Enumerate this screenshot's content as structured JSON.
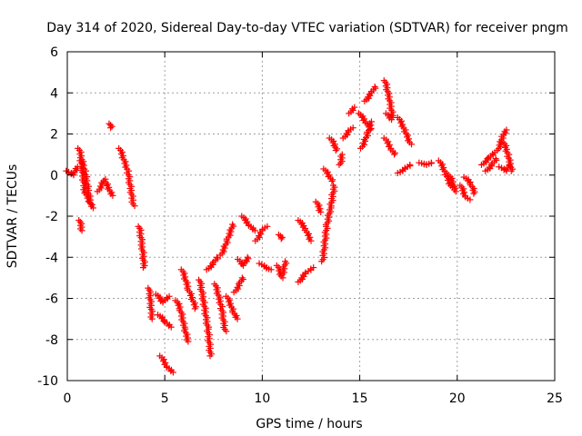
{
  "chart_data": {
    "type": "scatter",
    "title": "Day 314 of 2020, Sidereal Day-to-day VTEC variation (SDTVAR) for receiver pngm",
    "xlabel": "GPS time / hours",
    "ylabel": "SDTVAR / TECUs",
    "xlim": [
      0,
      25
    ],
    "ylim": [
      -10,
      6
    ],
    "xticks": [
      "0",
      "5",
      "10",
      "15",
      "20",
      "25"
    ],
    "yticks": [
      "-10",
      "-8",
      "-6",
      "-4",
      "-2",
      "0",
      "2",
      "4",
      "6"
    ],
    "grid": true,
    "marker": "plus",
    "color": "#ff0000",
    "series": [
      {
        "name": "SDTVAR",
        "segments": [
          [
            [
              0.0,
              0.2
            ],
            [
              0.3,
              0.0
            ],
            [
              0.5,
              0.4
            ]
          ],
          [
            [
              0.6,
              1.3
            ],
            [
              0.9,
              0.2
            ],
            [
              1.2,
              -1.4
            ]
          ],
          [
            [
              0.65,
              -2.2
            ],
            [
              0.75,
              -2.7
            ]
          ],
          [
            [
              0.7,
              0.7
            ],
            [
              0.9,
              -0.8
            ],
            [
              1.3,
              -1.6
            ]
          ],
          [
            [
              1.6,
              -0.8
            ],
            [
              1.9,
              -0.2
            ],
            [
              2.3,
              -1.0
            ]
          ],
          [
            [
              2.2,
              2.5
            ],
            [
              2.25,
              2.3
            ]
          ],
          [
            [
              2.7,
              1.3
            ],
            [
              3.1,
              0.2
            ],
            [
              3.4,
              -1.5
            ]
          ],
          [
            [
              3.7,
              -2.5
            ],
            [
              3.85,
              -3.5
            ],
            [
              3.95,
              -4.5
            ]
          ],
          [
            [
              4.2,
              -5.5
            ],
            [
              4.35,
              -7.0
            ]
          ],
          [
            [
              4.6,
              -5.8
            ],
            [
              4.9,
              -6.2
            ],
            [
              5.2,
              -5.9
            ]
          ],
          [
            [
              4.7,
              -6.8
            ],
            [
              5.0,
              -7.1
            ],
            [
              5.3,
              -7.4
            ]
          ],
          [
            [
              4.8,
              -8.8
            ],
            [
              5.1,
              -9.3
            ],
            [
              5.4,
              -9.6
            ]
          ],
          [
            [
              5.6,
              -6.1
            ],
            [
              5.8,
              -6.5
            ],
            [
              6.0,
              -7.4
            ],
            [
              6.2,
              -8.1
            ]
          ],
          [
            [
              5.9,
              -4.6
            ],
            [
              6.2,
              -5.5
            ],
            [
              6.6,
              -6.5
            ]
          ],
          [
            [
              6.8,
              -5.1
            ],
            [
              7.0,
              -6.2
            ],
            [
              7.2,
              -7.4
            ],
            [
              7.35,
              -8.8
            ]
          ],
          [
            [
              7.2,
              -4.6
            ],
            [
              7.5,
              -4.3
            ],
            [
              7.7,
              -4.0
            ]
          ],
          [
            [
              7.6,
              -5.3
            ],
            [
              7.9,
              -6.4
            ],
            [
              8.1,
              -7.6
            ]
          ],
          [
            [
              7.9,
              -3.9
            ],
            [
              8.2,
              -3.2
            ],
            [
              8.5,
              -2.4
            ]
          ],
          [
            [
              8.2,
              -5.9
            ],
            [
              8.5,
              -6.6
            ],
            [
              8.7,
              -7.0
            ]
          ],
          [
            [
              8.6,
              -5.7
            ],
            [
              8.85,
              -5.3
            ],
            [
              9.0,
              -5.0
            ]
          ],
          [
            [
              8.8,
              -4.1
            ],
            [
              9.0,
              -4.4
            ],
            [
              9.3,
              -4.0
            ]
          ],
          [
            [
              9.0,
              -2.0
            ],
            [
              9.3,
              -2.4
            ],
            [
              9.6,
              -2.7
            ]
          ],
          [
            [
              9.7,
              -3.2
            ],
            [
              10.0,
              -2.7
            ],
            [
              10.2,
              -2.5
            ]
          ],
          [
            [
              9.9,
              -4.3
            ],
            [
              10.2,
              -4.5
            ],
            [
              10.4,
              -4.6
            ]
          ],
          [
            [
              10.9,
              -2.9
            ],
            [
              11.0,
              -3.1
            ]
          ],
          [
            [
              10.8,
              -4.4
            ],
            [
              11.0,
              -5.0
            ],
            [
              11.2,
              -4.2
            ]
          ],
          [
            [
              11.9,
              -2.2
            ],
            [
              12.2,
              -2.6
            ],
            [
              12.5,
              -3.2
            ]
          ],
          [
            [
              11.9,
              -5.2
            ],
            [
              12.2,
              -4.8
            ],
            [
              12.6,
              -4.5
            ]
          ],
          [
            [
              12.8,
              -1.3
            ],
            [
              13.0,
              -1.8
            ]
          ],
          [
            [
              13.1,
              -4.2
            ],
            [
              13.3,
              -2.5
            ],
            [
              13.5,
              -1.6
            ],
            [
              13.7,
              -0.5
            ]
          ],
          [
            [
              13.2,
              0.3
            ],
            [
              13.4,
              0.0
            ],
            [
              13.6,
              -0.3
            ]
          ],
          [
            [
              13.5,
              1.8
            ],
            [
              13.7,
              1.5
            ],
            [
              13.8,
              1.2
            ]
          ],
          [
            [
              14.0,
              0.5
            ],
            [
              14.1,
              1.0
            ]
          ],
          [
            [
              14.2,
              1.8
            ],
            [
              14.4,
              2.1
            ],
            [
              14.6,
              2.3
            ]
          ],
          [
            [
              14.5,
              3.0
            ],
            [
              14.7,
              3.3
            ]
          ],
          [
            [
              15.0,
              3.0
            ],
            [
              15.3,
              2.6
            ],
            [
              15.6,
              2.2
            ]
          ],
          [
            [
              15.1,
              1.3
            ],
            [
              15.4,
              2.0
            ],
            [
              15.6,
              2.6
            ]
          ],
          [
            [
              15.3,
              3.6
            ],
            [
              15.6,
              4.0
            ],
            [
              15.8,
              4.3
            ]
          ],
          [
            [
              16.3,
              4.6
            ],
            [
              16.5,
              3.8
            ],
            [
              16.7,
              2.8
            ]
          ],
          [
            [
              16.3,
              1.8
            ],
            [
              16.6,
              1.3
            ],
            [
              16.8,
              1.0
            ]
          ],
          [
            [
              16.4,
              3.0
            ],
            [
              16.6,
              2.7
            ]
          ],
          [
            [
              17.0,
              2.8
            ],
            [
              17.3,
              2.2
            ],
            [
              17.6,
              1.5
            ]
          ],
          [
            [
              17.0,
              0.1
            ],
            [
              17.3,
              0.3
            ],
            [
              17.6,
              0.5
            ]
          ],
          [
            [
              18.1,
              0.6
            ],
            [
              18.4,
              0.5
            ],
            [
              18.7,
              0.6
            ]
          ],
          [
            [
              19.1,
              0.7
            ],
            [
              19.4,
              0.1
            ],
            [
              19.7,
              -0.6
            ]
          ],
          [
            [
              19.6,
              0.0
            ],
            [
              19.8,
              -0.4
            ],
            [
              19.9,
              -0.8
            ]
          ],
          [
            [
              20.2,
              -0.5
            ],
            [
              20.4,
              -1.0
            ],
            [
              20.6,
              -1.2
            ]
          ],
          [
            [
              20.4,
              -0.1
            ],
            [
              20.7,
              -0.4
            ],
            [
              20.9,
              -0.9
            ]
          ],
          [
            [
              21.3,
              0.5
            ],
            [
              21.6,
              0.8
            ],
            [
              21.9,
              1.1
            ]
          ],
          [
            [
              21.5,
              0.2
            ],
            [
              21.8,
              0.5
            ],
            [
              22.0,
              0.8
            ]
          ],
          [
            [
              22.1,
              1.2
            ],
            [
              22.3,
              1.8
            ],
            [
              22.5,
              2.2
            ]
          ],
          [
            [
              22.4,
              1.6
            ],
            [
              22.6,
              1.0
            ],
            [
              22.8,
              0.2
            ]
          ],
          [
            [
              22.2,
              0.4
            ],
            [
              22.5,
              0.2
            ],
            [
              22.7,
              0.5
            ]
          ]
        ]
      }
    ]
  }
}
